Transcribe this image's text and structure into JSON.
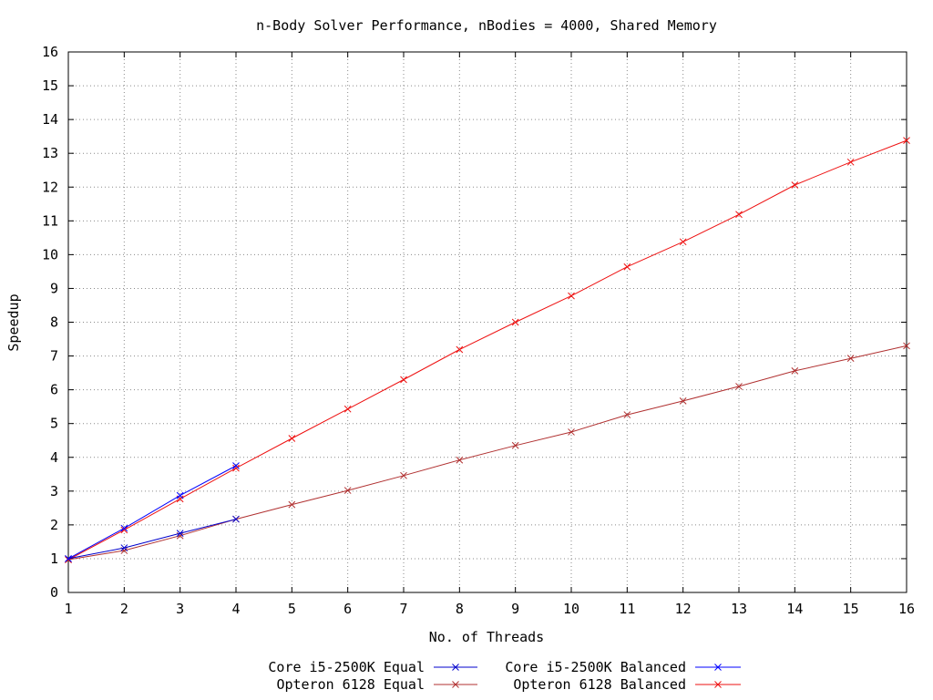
{
  "chart_data": {
    "type": "line",
    "title": "n-Body Solver Performance, nBodies = 4000, Shared Memory",
    "xlabel": "No. of Threads",
    "ylabel": "Speedup",
    "xlim": [
      1,
      16
    ],
    "ylim": [
      0,
      16
    ],
    "x_ticks": [
      1,
      2,
      3,
      4,
      5,
      6,
      7,
      8,
      9,
      10,
      11,
      12,
      13,
      14,
      15,
      16
    ],
    "y_ticks": [
      0,
      1,
      2,
      3,
      4,
      5,
      6,
      7,
      8,
      9,
      10,
      11,
      12,
      13,
      14,
      15,
      16
    ],
    "grid": true,
    "legend_position": "bottom-center",
    "series": [
      {
        "name": "Core i5-2500K Equal",
        "color": "#0000cc",
        "marker": "x",
        "x": [
          1,
          2,
          3,
          4
        ],
        "y": [
          1.0,
          1.32,
          1.75,
          2.17
        ]
      },
      {
        "name": "Core i5-2500K Balanced",
        "color": "#0000ff",
        "marker": "x",
        "x": [
          1,
          2,
          3,
          4
        ],
        "y": [
          1.0,
          1.9,
          2.87,
          3.75
        ]
      },
      {
        "name": "Opteron 6128 Equal",
        "color": "#b03030",
        "marker": "x",
        "x": [
          1,
          2,
          3,
          4,
          5,
          6,
          7,
          8,
          9,
          10,
          11,
          12,
          13,
          14,
          15,
          16
        ],
        "y": [
          0.97,
          1.24,
          1.68,
          2.17,
          2.6,
          3.02,
          3.46,
          3.92,
          4.35,
          4.75,
          5.26,
          5.67,
          6.1,
          6.56,
          6.93,
          7.3
        ]
      },
      {
        "name": "Opteron 6128 Balanced",
        "color": "#ee1111",
        "marker": "x",
        "x": [
          1,
          2,
          3,
          4,
          5,
          6,
          7,
          8,
          9,
          10,
          11,
          12,
          13,
          14,
          15,
          16
        ],
        "y": [
          0.97,
          1.85,
          2.77,
          3.68,
          4.56,
          5.43,
          6.3,
          7.19,
          8.0,
          8.78,
          9.64,
          10.38,
          11.19,
          12.06,
          12.74,
          13.38
        ]
      }
    ]
  }
}
